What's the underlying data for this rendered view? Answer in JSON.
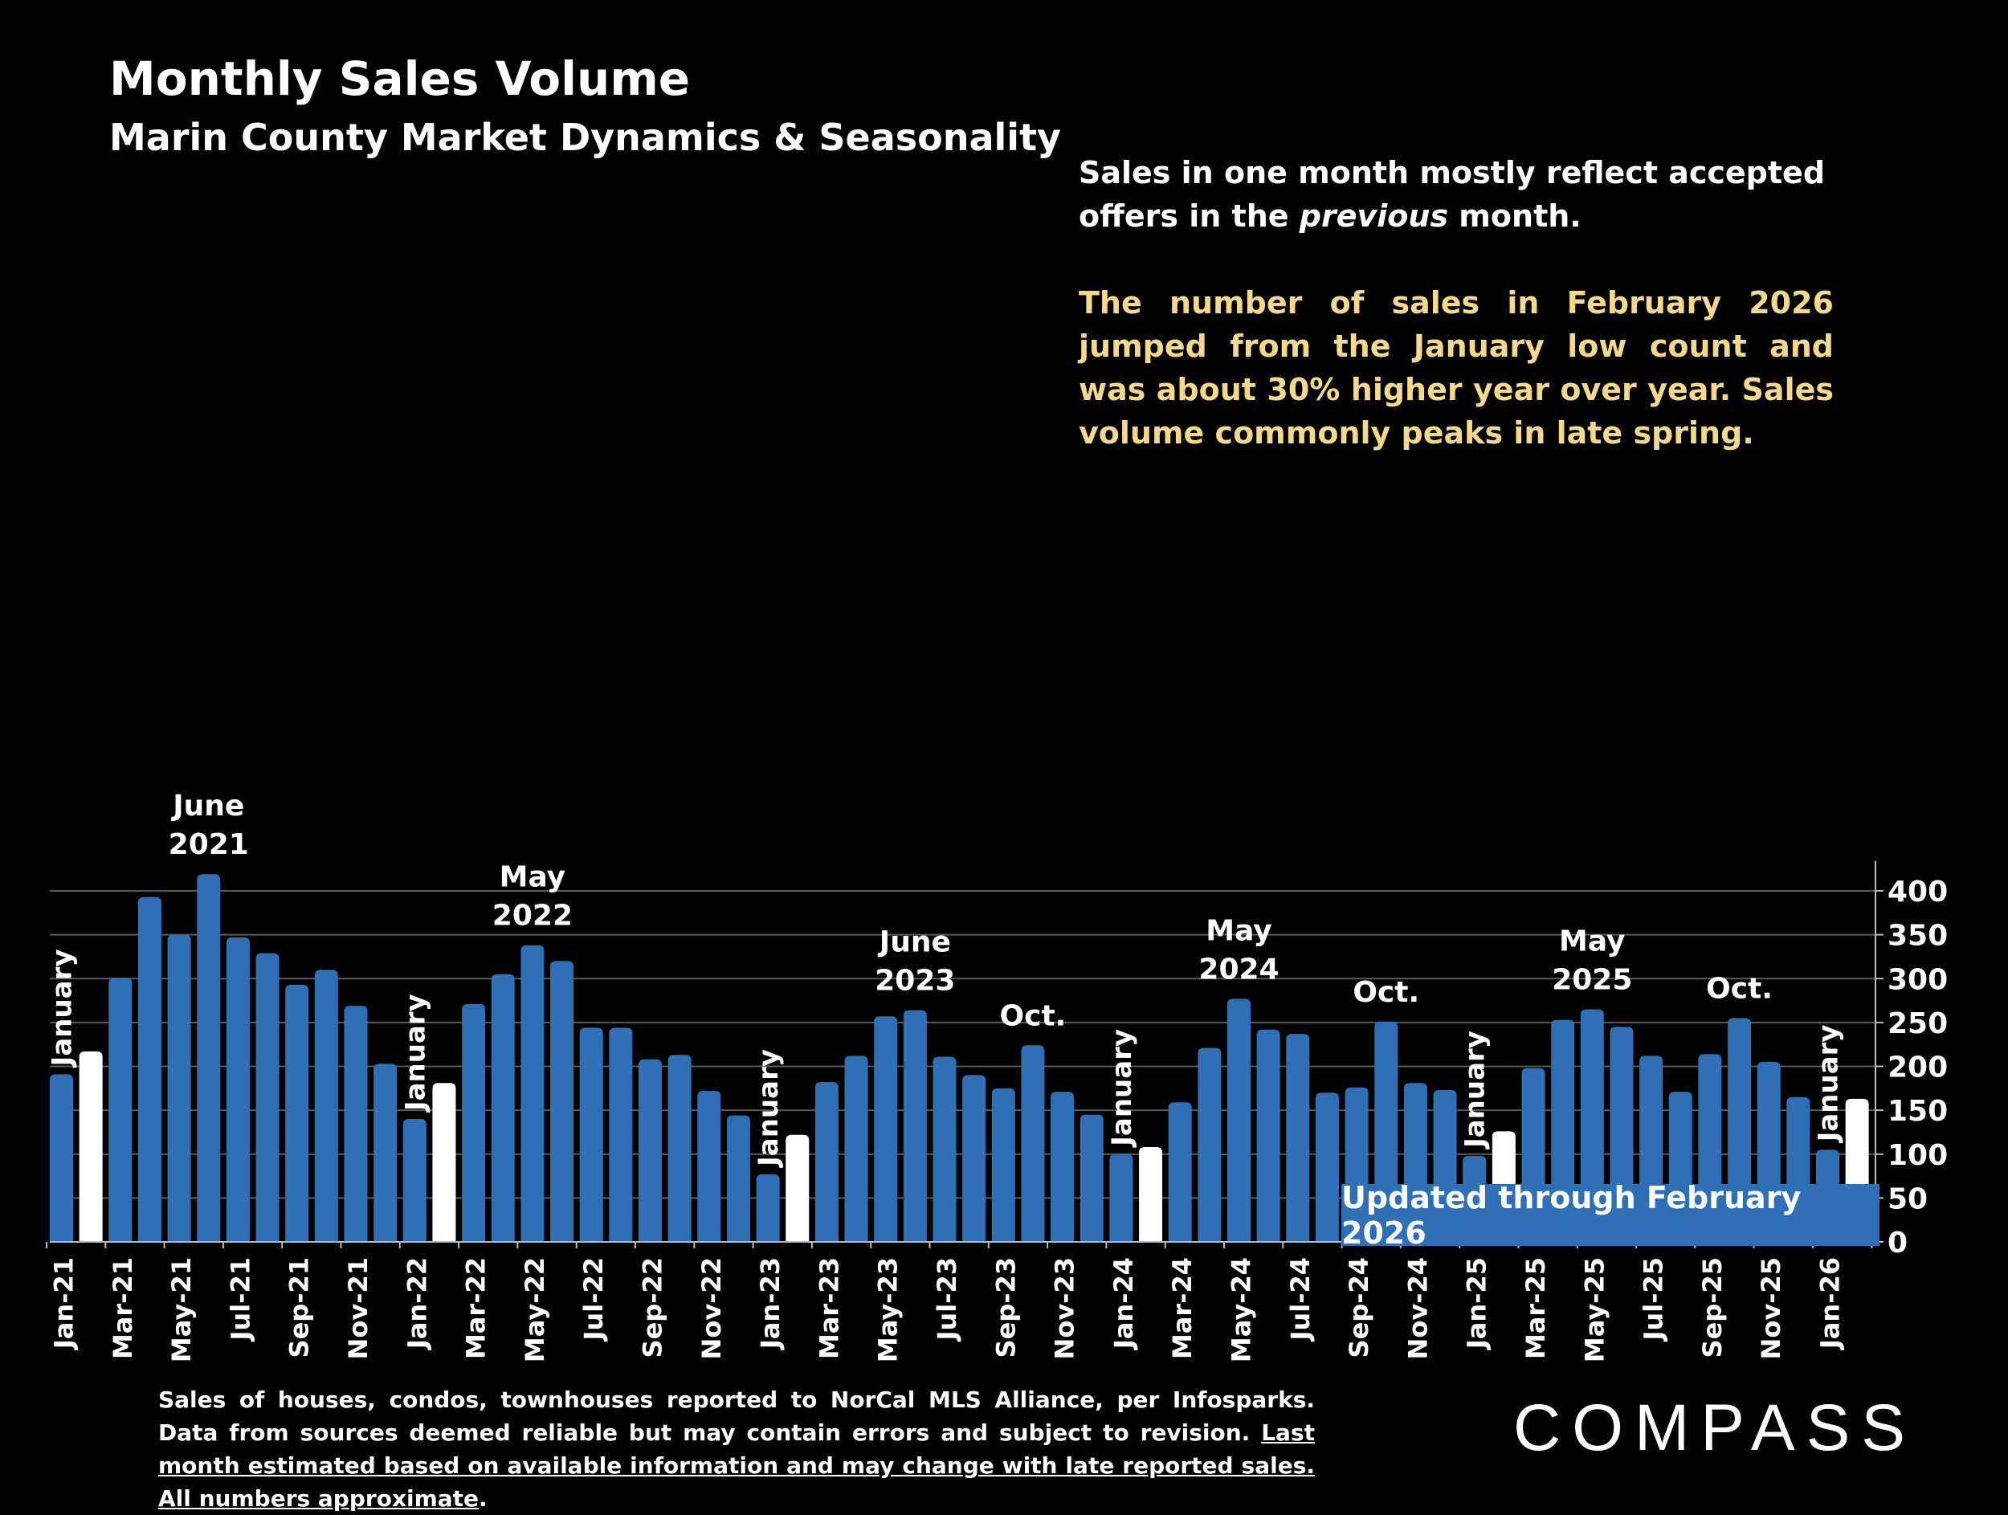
{
  "title": "Monthly Sales Volume",
  "subtitle": "Marin County Market Dynamics & Seasonality",
  "note": {
    "line1_pre": "Sales in one month mostly reflect accepted offers in the ",
    "line1_em": "previous",
    "line1_post": " month.",
    "line2": "The number of sales in February 2026 jumped from the January low count and was about 30% higher year over year. Sales volume commonly peaks in late spring."
  },
  "updated_label": "Updated through February 2026",
  "footer": {
    "plain": "Sales of houses, condos, townhouses reported to NorCal MLS Alliance, per Infosparks. Data from sources deemed reliable but may contain errors and subject to revision. ",
    "underlined": "Last month estimated based on available information and may change with late reported sales. All numbers approximate",
    "end": "."
  },
  "logo_text": "COMPASS",
  "colors": {
    "bar": "#2e6fb6",
    "january_bar": "#ffffff",
    "background": "#000000",
    "note_highlight": "#f5d98a",
    "grid": "#5a5a5a"
  },
  "chart_data": {
    "type": "bar",
    "categories": [
      "Jan-21",
      "Feb-21",
      "Mar-21",
      "Apr-21",
      "May-21",
      "Jun-21",
      "Jul-21",
      "Aug-21",
      "Sep-21",
      "Oct-21",
      "Nov-21",
      "Dec-21",
      "Jan-22",
      "Feb-22",
      "Mar-22",
      "Apr-22",
      "May-22",
      "Jun-22",
      "Jul-22",
      "Aug-22",
      "Sep-22",
      "Oct-22",
      "Nov-22",
      "Dec-22",
      "Jan-23",
      "Feb-23",
      "Mar-23",
      "Apr-23",
      "May-23",
      "Jun-23",
      "Jul-23",
      "Aug-23",
      "Sep-23",
      "Oct-23",
      "Nov-23",
      "Dec-23",
      "Jan-24",
      "Feb-24",
      "Mar-24",
      "Apr-24",
      "May-24",
      "Jun-24",
      "Jul-24",
      "Aug-24",
      "Sep-24",
      "Oct-24",
      "Nov-24",
      "Dec-24",
      "Jan-25",
      "Feb-25",
      "Mar-25",
      "Apr-25",
      "May-25",
      "Jun-25",
      "Jul-25",
      "Aug-25",
      "Sep-25",
      "Oct-25",
      "Nov-25",
      "Dec-25",
      "Jan-26",
      "Feb-26"
    ],
    "x_tick_labels": [
      "Jan-21",
      "Mar-21",
      "May-21",
      "Jul-21",
      "Sep-21",
      "Nov-21",
      "Jan-22",
      "Mar-22",
      "May-22",
      "Jul-22",
      "Sep-22",
      "Nov-22",
      "Jan-23",
      "Mar-23",
      "May-23",
      "Jul-23",
      "Sep-23",
      "Nov-23",
      "Jan-24",
      "Mar-24",
      "May-24",
      "Jul-24",
      "Sep-24",
      "Nov-24",
      "Jan-25",
      "Mar-25",
      "May-25",
      "Jul-25",
      "Sep-25",
      "Nov-25",
      "Jan-26"
    ],
    "values": [
      191,
      217,
      301,
      393,
      350,
      419,
      347,
      329,
      293,
      310,
      269,
      203,
      140,
      181,
      271,
      305,
      338,
      320,
      244,
      244,
      208,
      213,
      172,
      144,
      77,
      122,
      182,
      212,
      257,
      264,
      211,
      190,
      175,
      224,
      171,
      145,
      100,
      108,
      159,
      221,
      277,
      242,
      237,
      170,
      176,
      251,
      181,
      173,
      98,
      126,
      198,
      253,
      265,
      245,
      212,
      171,
      214,
      255,
      205,
      165,
      105,
      163
    ],
    "highlighted": [
      1,
      13,
      25,
      37,
      49,
      61
    ],
    "ylim": [
      0,
      425
    ],
    "yticks": [
      0,
      50,
      100,
      150,
      200,
      250,
      300,
      350,
      400
    ],
    "y_axis_side": "right",
    "grid": true,
    "annotations": [
      {
        "index": 0,
        "text": "January",
        "rotated": true
      },
      {
        "index": 5,
        "text": "June 2021"
      },
      {
        "index": 12,
        "text": "January",
        "rotated": true
      },
      {
        "index": 16,
        "text": "May 2022"
      },
      {
        "index": 24,
        "text": "January",
        "rotated": true
      },
      {
        "index": 29,
        "text": "June 2023"
      },
      {
        "index": 33,
        "text": "Oct."
      },
      {
        "index": 36,
        "text": "January",
        "rotated": true
      },
      {
        "index": 40,
        "text": "May 2024"
      },
      {
        "index": 45,
        "text": "Oct."
      },
      {
        "index": 48,
        "text": "January",
        "rotated": true
      },
      {
        "index": 52,
        "text": "May 2025"
      },
      {
        "index": 57,
        "text": "Oct."
      },
      {
        "index": 60,
        "text": "January",
        "rotated": true
      }
    ]
  }
}
